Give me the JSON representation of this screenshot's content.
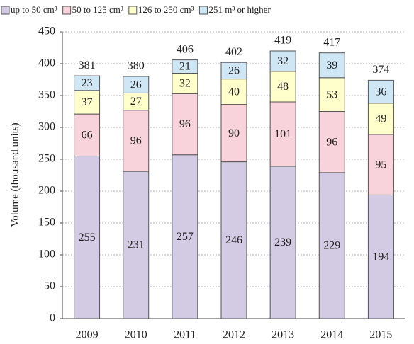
{
  "chart_data": {
    "type": "stacked_bar",
    "y_label": "Volume (thousand units)",
    "categories": [
      "2009",
      "2010",
      "2011",
      "2012",
      "2013",
      "2014",
      "2015"
    ],
    "series": [
      {
        "name": "up to 50 cm³",
        "color": "#d3cbe3",
        "values": [
          255,
          231,
          257,
          246,
          239,
          229,
          194
        ]
      },
      {
        "name": "50 to 125 cm³",
        "color": "#f9d3dc",
        "values": [
          66,
          96,
          96,
          90,
          101,
          96,
          95
        ]
      },
      {
        "name": "126 to 250 cm³",
        "color": "#ffffcc",
        "values": [
          37,
          27,
          32,
          40,
          48,
          53,
          49
        ]
      },
      {
        "name": "251 m³ or higher",
        "color": "#cfe6f5",
        "values": [
          23,
          26,
          21,
          26,
          32,
          39,
          36
        ]
      }
    ],
    "totals": [
      381,
      380,
      406,
      402,
      419,
      417,
      374
    ],
    "ylim": [
      0,
      450
    ],
    "yticks": [
      0,
      50,
      100,
      150,
      200,
      250,
      300,
      350,
      400,
      450
    ],
    "grid": true
  }
}
